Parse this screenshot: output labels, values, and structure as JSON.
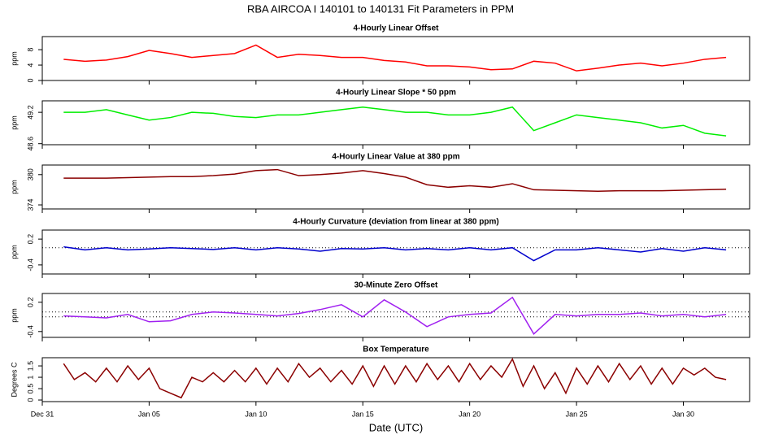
{
  "title": "RBA   AIRCOA I   140101 to 140131   Fit Parameters in PPM",
  "chart_data": [
    {
      "type": "line",
      "title": "4-Hourly Linear Offset",
      "y_label": "ppm",
      "x": [
        1,
        2,
        3,
        4,
        5,
        6,
        7,
        8,
        9,
        10,
        11,
        12,
        13,
        14,
        15,
        16,
        17,
        18,
        19,
        20,
        21,
        22,
        23,
        24,
        25,
        26,
        27,
        28,
        29,
        30,
        31,
        32
      ],
      "series": [
        {
          "color": "#ff0000",
          "values": [
            5.5,
            5.0,
            5.3,
            6.2,
            7.8,
            7.0,
            6.0,
            6.5,
            7.0,
            9.2,
            6.0,
            6.8,
            6.5,
            6.0,
            6.0,
            5.2,
            4.8,
            3.8,
            3.8,
            3.5,
            2.8,
            3.0,
            5.0,
            4.5,
            2.5,
            3.2,
            4.0,
            4.5,
            3.8,
            4.5,
            5.5,
            6.0
          ]
        }
      ],
      "xlim": [
        0,
        33.1
      ],
      "ylim": [
        0,
        11.4
      ],
      "yticks": [
        0,
        4,
        8
      ]
    },
    {
      "type": "line",
      "title": "4-Hourly Linear Slope * 50 ppm",
      "y_label": "ppm",
      "x": [
        1,
        2,
        3,
        4,
        5,
        6,
        7,
        8,
        9,
        10,
        11,
        12,
        13,
        14,
        15,
        16,
        17,
        18,
        19,
        20,
        21,
        22,
        23,
        24,
        25,
        26,
        27,
        28,
        29,
        30,
        31,
        32
      ],
      "series": [
        {
          "color": "#00ee00",
          "values": [
            49.2,
            49.2,
            49.25,
            49.15,
            49.05,
            49.1,
            49.2,
            49.18,
            49.12,
            49.1,
            49.15,
            49.15,
            49.2,
            49.25,
            49.3,
            49.25,
            49.2,
            49.2,
            49.15,
            49.15,
            49.2,
            49.3,
            48.85,
            49.0,
            49.15,
            49.1,
            49.05,
            49.0,
            48.9,
            48.95,
            48.8,
            48.75
          ]
        }
      ],
      "xlim": [
        0,
        33.1
      ],
      "ylim": [
        48.58,
        49.42
      ],
      "yticks": [
        48.6,
        49.2
      ]
    },
    {
      "type": "line",
      "title": "4-Hourly Linear Value at 380 ppm",
      "y_label": "ppm",
      "x": [
        1,
        2,
        3,
        4,
        5,
        6,
        7,
        8,
        9,
        10,
        11,
        12,
        13,
        14,
        15,
        16,
        17,
        18,
        19,
        20,
        21,
        22,
        23,
        24,
        25,
        26,
        27,
        28,
        29,
        30,
        31,
        32
      ],
      "series": [
        {
          "color": "#8b0000",
          "values": [
            379.3,
            379.3,
            379.3,
            379.4,
            379.5,
            379.6,
            379.6,
            379.8,
            380.1,
            380.8,
            381.0,
            379.8,
            380.0,
            380.3,
            380.8,
            380.2,
            379.5,
            378.0,
            377.5,
            377.8,
            377.5,
            378.2,
            377.0,
            376.9,
            376.8,
            376.7,
            376.8,
            376.8,
            376.8,
            376.9,
            377.0,
            377.1
          ]
        }
      ],
      "xlim": [
        0,
        33.1
      ],
      "ylim": [
        373.2,
        381.9
      ],
      "yticks": [
        374,
        380
      ]
    },
    {
      "type": "line",
      "title": "4-Hourly Curvature (deviation from linear at 380 ppm)",
      "y_label": "ppm",
      "x": [
        1,
        2,
        3,
        4,
        5,
        6,
        7,
        8,
        9,
        10,
        11,
        12,
        13,
        14,
        15,
        16,
        17,
        18,
        19,
        20,
        21,
        22,
        23,
        24,
        25,
        26,
        27,
        28,
        29,
        30,
        31,
        32
      ],
      "series": [
        {
          "color": "#0000cd",
          "values": [
            0.02,
            -0.05,
            0.0,
            -0.05,
            -0.03,
            0.0,
            -0.02,
            -0.04,
            0.0,
            -0.05,
            0.0,
            -0.03,
            -0.08,
            -0.02,
            -0.03,
            0.0,
            -0.05,
            -0.02,
            -0.05,
            0.0,
            -0.05,
            0.0,
            -0.3,
            -0.05,
            -0.05,
            0.0,
            -0.05,
            -0.1,
            -0.02,
            -0.08,
            0.0,
            -0.05
          ]
        }
      ],
      "xlim": [
        0,
        33.1
      ],
      "ylim": [
        -0.61,
        0.41
      ],
      "yticks": [
        -0.4,
        0.2
      ],
      "reference_lines": [
        0
      ]
    },
    {
      "type": "line",
      "title": "30-Minute Zero Offset",
      "y_label": "ppm",
      "x": [
        1,
        2,
        3,
        4,
        5,
        6,
        7,
        8,
        9,
        10,
        11,
        12,
        13,
        14,
        15,
        16,
        17,
        18,
        19,
        20,
        21,
        22,
        23,
        24,
        25,
        26,
        27,
        28,
        29,
        30,
        31,
        32
      ],
      "series": [
        {
          "color": "#a020f0",
          "values": [
            -0.08,
            -0.1,
            -0.12,
            -0.05,
            -0.2,
            -0.18,
            -0.05,
            0.0,
            -0.02,
            -0.05,
            -0.08,
            -0.03,
            0.05,
            0.15,
            -0.1,
            0.25,
            0.0,
            -0.3,
            -0.1,
            -0.05,
            -0.02,
            0.3,
            -0.45,
            -0.05,
            -0.08,
            -0.05,
            -0.05,
            -0.02,
            -0.08,
            -0.05,
            -0.1,
            -0.05
          ]
        }
      ],
      "xlim": [
        0,
        33.1
      ],
      "ylim": [
        -0.52,
        0.38
      ],
      "yticks": [
        -0.4,
        0.2
      ],
      "reference_lines": [
        0,
        -0.1
      ]
    },
    {
      "type": "line",
      "title": "Box Temperature",
      "y_label": "Degrees C",
      "x_label": "Date (UTC)",
      "x": [
        1,
        1.5,
        2,
        2.5,
        3,
        3.5,
        4,
        4.5,
        5,
        5.5,
        6,
        6.5,
        7,
        7.5,
        8,
        8.5,
        9,
        9.5,
        10,
        10.5,
        11,
        11.5,
        12,
        12.5,
        13,
        13.5,
        14,
        14.5,
        15,
        15.5,
        16,
        16.5,
        17,
        17.5,
        18,
        18.5,
        19,
        19.5,
        20,
        20.5,
        21,
        21.5,
        22,
        22.5,
        23,
        23.5,
        24,
        24.5,
        25,
        25.5,
        26,
        26.5,
        27,
        27.5,
        28,
        28.5,
        29,
        29.5,
        30,
        30.5,
        31,
        31.5,
        32
      ],
      "series": [
        {
          "color": "#8b0000",
          "values": [
            1.6,
            0.9,
            1.2,
            0.8,
            1.4,
            0.8,
            1.5,
            0.9,
            1.4,
            0.5,
            0.3,
            0.1,
            1.0,
            0.8,
            1.2,
            0.8,
            1.3,
            0.8,
            1.4,
            0.7,
            1.4,
            0.8,
            1.6,
            1.0,
            1.4,
            0.8,
            1.3,
            0.7,
            1.5,
            0.6,
            1.5,
            0.7,
            1.5,
            0.8,
            1.6,
            0.9,
            1.5,
            0.8,
            1.6,
            0.9,
            1.5,
            1.0,
            1.8,
            0.6,
            1.5,
            0.5,
            1.2,
            0.3,
            1.4,
            0.7,
            1.5,
            0.8,
            1.6,
            0.9,
            1.5,
            0.7,
            1.4,
            0.7,
            1.4,
            1.1,
            1.4,
            1.0,
            0.9
          ]
        }
      ],
      "xlim": [
        0,
        33.1
      ],
      "ylim": [
        -0.07,
        1.86
      ],
      "yticks": [
        0,
        0.5,
        1,
        1.5
      ],
      "xticks": [
        {
          "value": 0,
          "label": "Dec 31"
        },
        {
          "value": 5,
          "label": "Jan 05"
        },
        {
          "value": 10,
          "label": "Jan 10"
        },
        {
          "value": 15,
          "label": "Jan 15"
        },
        {
          "value": 20,
          "label": "Jan 20"
        },
        {
          "value": 25,
          "label": "Jan 25"
        },
        {
          "value": 30,
          "label": "Jan 30"
        }
      ]
    }
  ]
}
